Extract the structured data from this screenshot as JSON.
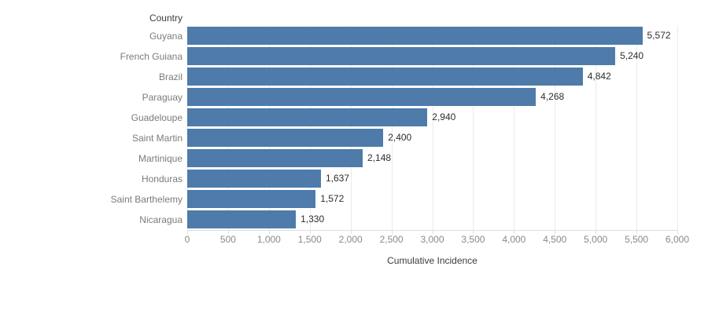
{
  "chart_data": {
    "type": "bar",
    "orientation": "horizontal",
    "column_header": "Country",
    "categories": [
      "Guyana",
      "French Guiana",
      "Brazil",
      "Paraguay",
      "Guadeloupe",
      "Saint Martin",
      "Martinique",
      "Honduras",
      "Saint Barthelemy",
      "Nicaragua"
    ],
    "values": [
      5572,
      5240,
      4842,
      4268,
      2940,
      2400,
      2148,
      1637,
      1572,
      1330
    ],
    "value_labels": [
      "5,572",
      "5,240",
      "4,842",
      "4,268",
      "2,940",
      "2,400",
      "2,148",
      "1,637",
      "1,572",
      "1,330"
    ],
    "xlabel": "Cumulative Incidence",
    "ylabel": "Country",
    "xlim": [
      0,
      6000
    ],
    "xticks": [
      0,
      500,
      1000,
      1500,
      2000,
      2500,
      3000,
      3500,
      4000,
      4500,
      5000,
      5500,
      6000
    ],
    "xtick_labels": [
      "0",
      "500",
      "1,000",
      "1,500",
      "2,000",
      "2,500",
      "3,000",
      "3,500",
      "4,000",
      "4,500",
      "5,000",
      "5,500",
      "6,000"
    ],
    "bar_color": "#4e7ba9",
    "gridlines": true,
    "legend": "none"
  }
}
